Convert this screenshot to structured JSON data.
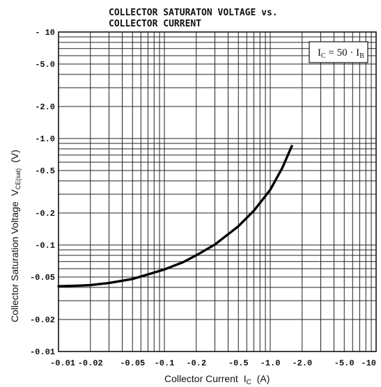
{
  "chart_data": {
    "type": "line",
    "title_line1": "COLLECTOR SATURATON VOLTAGE vs.",
    "title_line2": "COLLECTOR CURRENT",
    "xlabel_main": "Collector Current",
    "xlabel_symbol": "I",
    "xlabel_sub": "C",
    "xlabel_unit": "(A)",
    "ylabel_main": "Collector Saturation Voltage",
    "ylabel_symbol": "V",
    "ylabel_sub": "CE(sat)",
    "ylabel_unit": "(V)",
    "annotation": {
      "lhs": "I",
      "lhs_sub": "C",
      "mid": " = 50 · I",
      "rhs_sub": "B"
    },
    "x_scale": "log",
    "y_scale": "log",
    "xlim": [
      -0.01,
      -10
    ],
    "ylim": [
      -0.01,
      -10
    ],
    "x_ticks": [
      {
        "value": -0.01,
        "label": "-0.01"
      },
      {
        "value": -0.02,
        "label": "-0.02"
      },
      {
        "value": -0.05,
        "label": "-0.05"
      },
      {
        "value": -0.1,
        "label": "-0.1"
      },
      {
        "value": -0.2,
        "label": "-0.2"
      },
      {
        "value": -0.5,
        "label": "-0.5"
      },
      {
        "value": -1.0,
        "label": "-1.0"
      },
      {
        "value": -2.0,
        "label": "-2.0"
      },
      {
        "value": -5.0,
        "label": "-5.0"
      },
      {
        "value": -10,
        "label": "-10"
      }
    ],
    "y_ticks": [
      {
        "value": -10,
        "label": "- 10"
      },
      {
        "value": -5.0,
        "label": "-5.0"
      },
      {
        "value": -2.0,
        "label": "-2.0"
      },
      {
        "value": -1.0,
        "label": "-1.0"
      },
      {
        "value": -0.5,
        "label": "-0.5"
      },
      {
        "value": -0.2,
        "label": "-0.2"
      },
      {
        "value": -0.1,
        "label": "-0.1"
      },
      {
        "value": -0.05,
        "label": "-0.05"
      },
      {
        "value": -0.02,
        "label": "-0.02"
      },
      {
        "value": -0.01,
        "label": "-0.01"
      }
    ],
    "grid": true,
    "series": [
      {
        "x": [
          -0.01,
          -0.015,
          -0.02,
          -0.03,
          -0.05,
          -0.07,
          -0.1,
          -0.15,
          -0.2,
          -0.3,
          -0.5,
          -0.7,
          -1.0,
          -1.3,
          -1.6
        ],
        "y": [
          -0.041,
          -0.0415,
          -0.042,
          -0.044,
          -0.048,
          -0.053,
          -0.059,
          -0.069,
          -0.08,
          -0.101,
          -0.15,
          -0.21,
          -0.33,
          -0.53,
          -0.85
        ]
      }
    ]
  }
}
